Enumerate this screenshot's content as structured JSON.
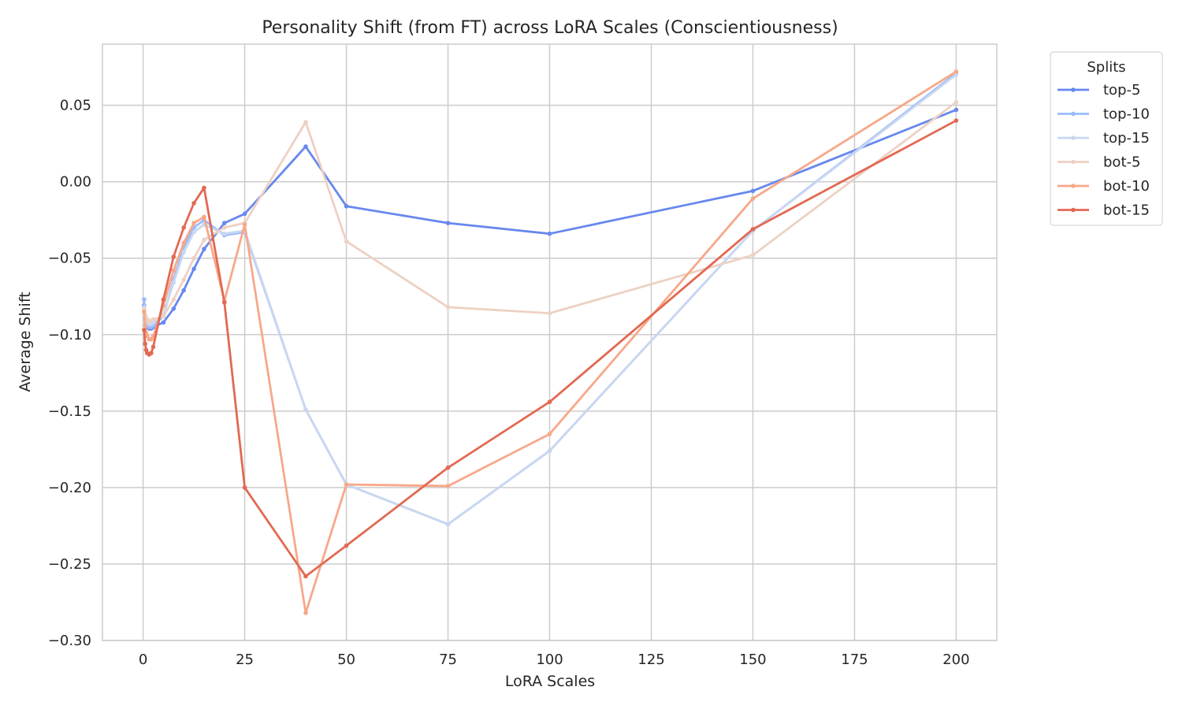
{
  "chart_data": {
    "type": "line",
    "title": "Personality Shift (from FT) across LoRA Scales (Conscientiousness)",
    "xlabel": "LoRA Scales",
    "ylabel": "Average Shift",
    "xlim": [
      -10,
      210
    ],
    "ylim": [
      -0.3,
      0.09
    ],
    "x_ticks": [
      0,
      25,
      50,
      75,
      100,
      125,
      150,
      175,
      200
    ],
    "y_ticks": [
      0.05,
      0.0,
      -0.05,
      -0.1,
      -0.15,
      -0.2,
      -0.25,
      -0.3
    ],
    "x_tick_labels": [
      "0",
      "25",
      "50",
      "75",
      "100",
      "125",
      "150",
      "175",
      "200"
    ],
    "y_tick_labels": [
      "0.05",
      "0.00",
      "−0.05",
      "−0.10",
      "−0.15",
      "−0.20",
      "−0.25",
      "−0.30"
    ],
    "grid": true,
    "legend": {
      "title": "Splits",
      "placement": "outside top-right"
    },
    "series": [
      {
        "name": "top-5",
        "color": "#6788ee",
        "x": [
          0.25,
          0.5,
          0.75,
          1,
          1.5,
          2,
          2.5,
          5,
          7.5,
          10,
          12.5,
          15,
          20,
          25,
          40,
          50,
          75,
          100,
          150,
          200
        ],
        "y": [
          -0.081,
          -0.089,
          -0.093,
          -0.095,
          -0.096,
          -0.096,
          -0.095,
          -0.092,
          -0.083,
          -0.071,
          -0.057,
          -0.044,
          -0.027,
          -0.021,
          0.023,
          -0.016,
          -0.027,
          -0.034,
          -0.006,
          0.047
        ]
      },
      {
        "name": "top-10",
        "color": "#9abbff",
        "x": [
          0.25,
          0.5,
          0.75,
          1,
          1.5,
          2,
          2.5,
          5,
          7.5,
          10,
          12.5,
          15,
          20,
          25,
          40,
          50,
          75,
          100,
          150,
          200
        ],
        "y": [
          -0.077,
          -0.089,
          -0.093,
          -0.094,
          -0.095,
          -0.095,
          -0.094,
          -0.088,
          -0.064,
          -0.043,
          -0.03,
          -0.025,
          -0.035,
          -0.033,
          -0.149,
          -0.198,
          -0.224,
          -0.176,
          -0.032,
          0.071
        ]
      },
      {
        "name": "top-15",
        "color": "#c9d7f0",
        "x": [
          0.25,
          0.5,
          0.75,
          1,
          1.5,
          2,
          2.5,
          5,
          7.5,
          10,
          12.5,
          15,
          20,
          25,
          40,
          50,
          75,
          100,
          150,
          200
        ],
        "y": [
          -0.082,
          -0.088,
          -0.091,
          -0.092,
          -0.093,
          -0.093,
          -0.092,
          -0.087,
          -0.066,
          -0.046,
          -0.033,
          -0.028,
          -0.034,
          -0.032,
          -0.149,
          -0.198,
          -0.224,
          -0.176,
          -0.032,
          0.07
        ]
      },
      {
        "name": "bot-5",
        "color": "#edd1c2",
        "x": [
          0.25,
          0.5,
          0.75,
          1,
          1.5,
          2,
          2.5,
          5,
          7.5,
          10,
          12.5,
          15,
          20,
          25,
          40,
          50,
          75,
          100,
          150,
          200
        ],
        "y": [
          -0.083,
          -0.087,
          -0.089,
          -0.09,
          -0.091,
          -0.091,
          -0.09,
          -0.088,
          -0.077,
          -0.064,
          -0.05,
          -0.038,
          -0.03,
          -0.027,
          0.039,
          -0.039,
          -0.082,
          -0.086,
          -0.048,
          0.052
        ]
      },
      {
        "name": "bot-10",
        "color": "#f7a889",
        "x": [
          0.25,
          0.5,
          0.75,
          1,
          1.5,
          2,
          2.5,
          5,
          7.5,
          10,
          12.5,
          15,
          20,
          25,
          40,
          50,
          75,
          100,
          150,
          200
        ],
        "y": [
          -0.085,
          -0.094,
          -0.099,
          -0.101,
          -0.103,
          -0.103,
          -0.101,
          -0.081,
          -0.058,
          -0.04,
          -0.027,
          -0.023,
          -0.078,
          -0.028,
          -0.282,
          -0.198,
          -0.199,
          -0.165,
          -0.011,
          0.072
        ]
      },
      {
        "name": "bot-15",
        "color": "#e26952",
        "x": [
          0.25,
          0.5,
          0.75,
          1,
          1.5,
          2,
          2.5,
          5,
          7.5,
          10,
          12.5,
          15,
          20,
          25,
          40,
          50,
          75,
          100,
          150,
          200
        ],
        "y": [
          -0.097,
          -0.106,
          -0.11,
          -0.112,
          -0.113,
          -0.112,
          -0.108,
          -0.077,
          -0.049,
          -0.03,
          -0.014,
          -0.004,
          -0.079,
          -0.2,
          -0.258,
          -0.238,
          -0.187,
          -0.144,
          -0.031,
          0.04
        ]
      }
    ]
  }
}
